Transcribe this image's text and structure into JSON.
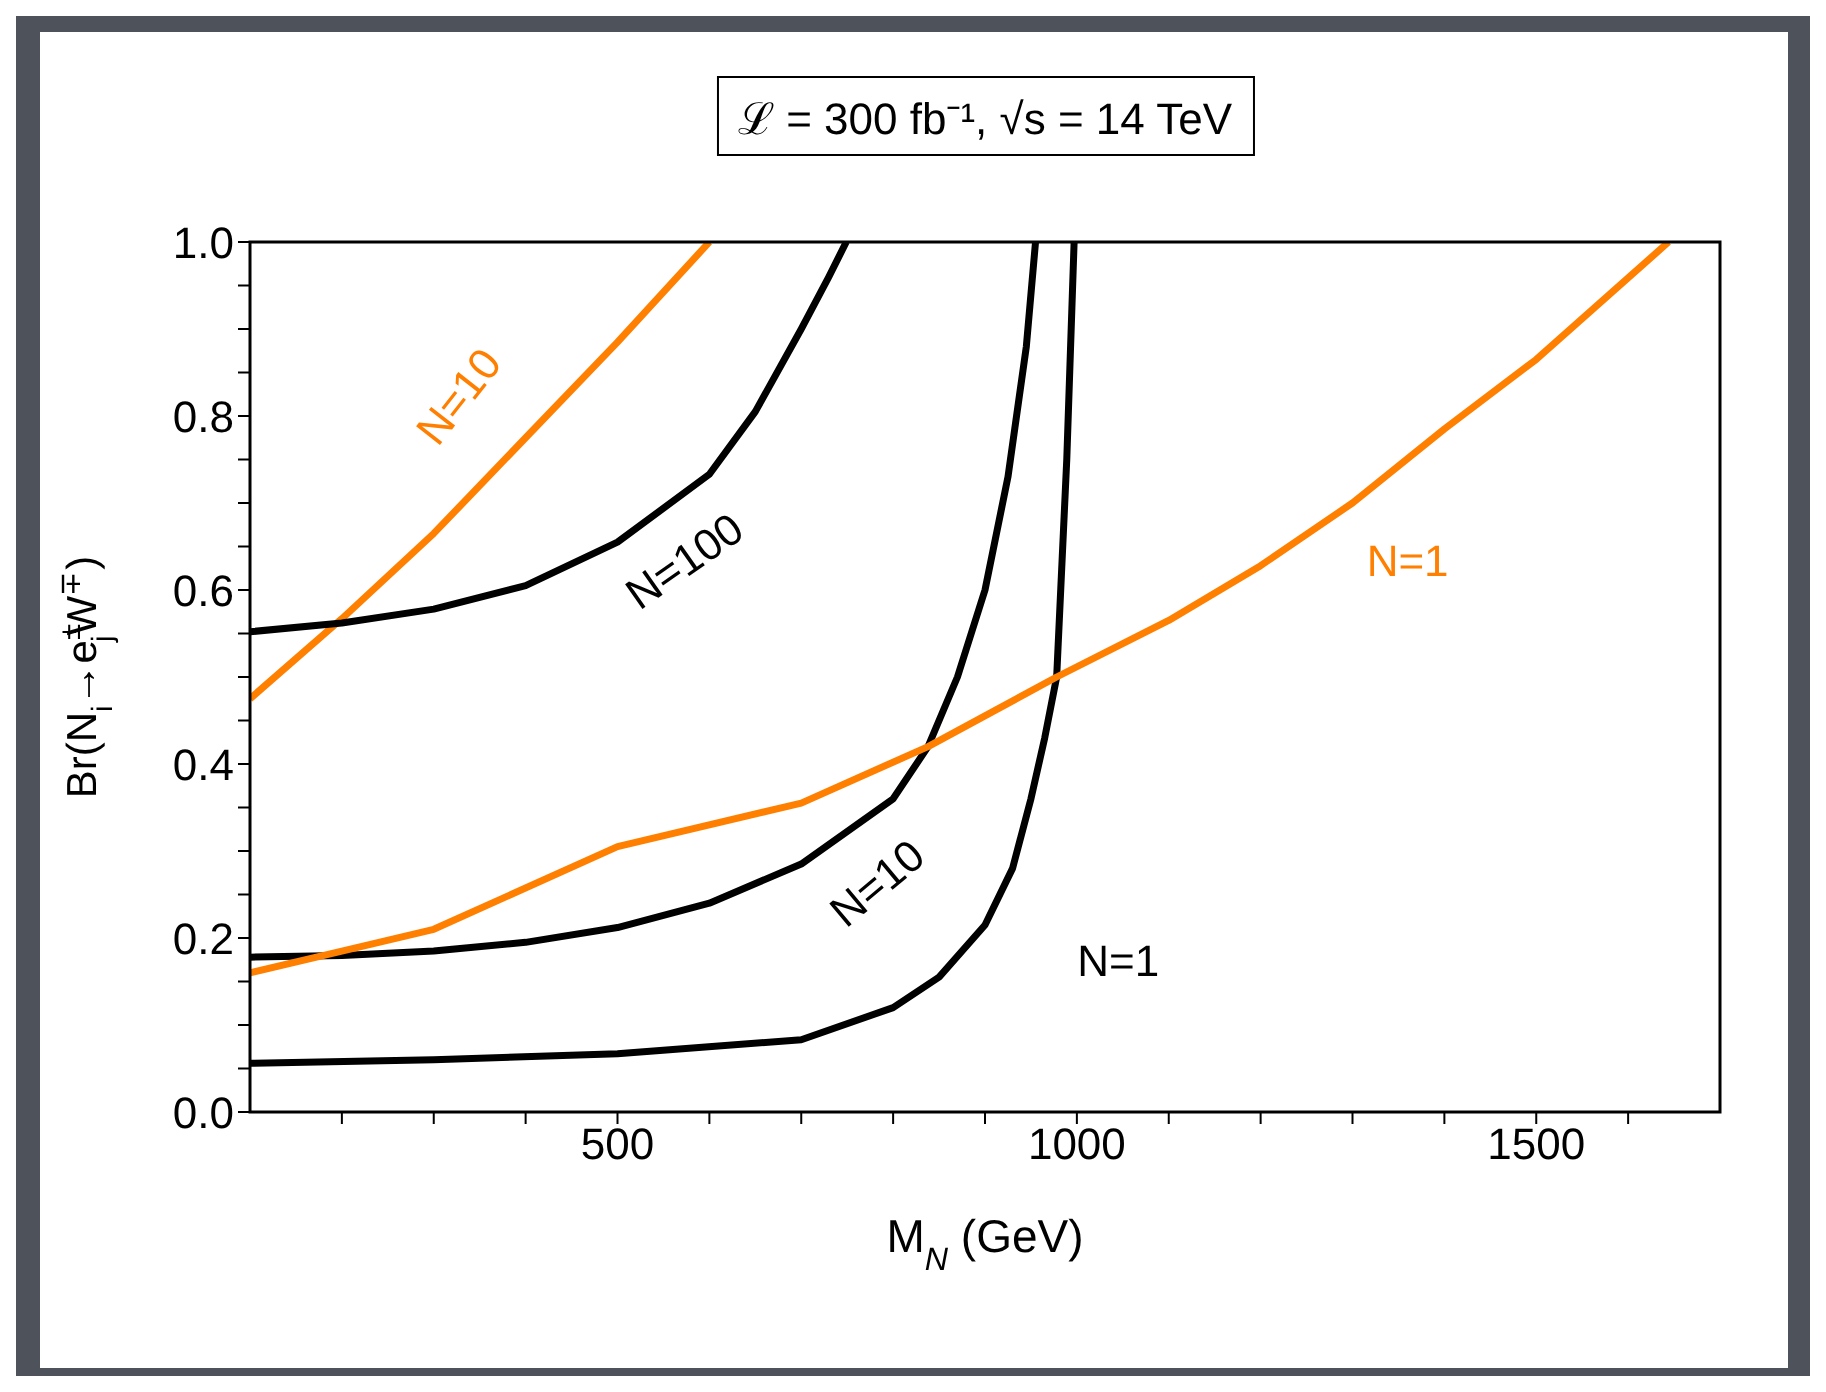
{
  "chart_data": {
    "type": "line",
    "title": "ℒ = 300 fb⁻¹, √s = 14 TeV",
    "xlabel": "M$_{N}$ (GeV)",
    "ylabel": "Br(N$_{i}$→e$^{±}$$_{j}$W$^{∓}$)",
    "xlim": [
      100,
      1700
    ],
    "ylim": [
      0,
      1
    ],
    "xticks": [
      {
        "value": 200,
        "label": null
      },
      {
        "value": 300,
        "label": null
      },
      {
        "value": 400,
        "label": null
      },
      500,
      {
        "value": 600,
        "label": null
      },
      {
        "value": 700,
        "label": null
      },
      {
        "value": 800,
        "label": null
      },
      {
        "value": 900,
        "label": null
      },
      1000,
      {
        "value": 1100,
        "label": null
      },
      {
        "value": 1200,
        "label": null
      },
      {
        "value": 1300,
        "label": null
      },
      {
        "value": 1400,
        "label": null
      },
      1500,
      {
        "value": 1600,
        "label": null
      }
    ],
    "yticks": [
      {
        "value": 0,
        "label": "0.0"
      },
      {
        "value": 0.05,
        "label": null
      },
      {
        "value": 0.1,
        "label": null
      },
      {
        "value": 0.15,
        "label": null
      },
      0.2,
      {
        "value": 0.25,
        "label": null
      },
      {
        "value": 0.3,
        "label": null
      },
      {
        "value": 0.35,
        "label": null
      },
      0.4,
      {
        "value": 0.45,
        "label": null
      },
      {
        "value": 0.5,
        "label": null
      },
      {
        "value": 0.55,
        "label": null
      },
      0.6,
      {
        "value": 0.65,
        "label": null
      },
      {
        "value": 0.7,
        "label": null
      },
      {
        "value": 0.75,
        "label": null
      },
      0.8,
      {
        "value": 0.85,
        "label": null
      },
      {
        "value": 0.9,
        "label": null
      },
      {
        "value": 0.95,
        "label": null
      },
      {
        "value": 1,
        "label": "1.0"
      }
    ],
    "series": [
      {
        "name": "N=10",
        "color": "#ff8000",
        "x": [
          100,
          200,
          300,
          400,
          500,
          600
        ],
        "values": [
          0.475,
          0.567,
          0.665,
          0.775,
          0.885,
          1.0
        ]
      },
      {
        "name": "N=100",
        "color": "#000000",
        "x": [
          100,
          200,
          300,
          400,
          500,
          600,
          650,
          700,
          730,
          749
        ],
        "values": [
          0.552,
          0.562,
          0.578,
          0.605,
          0.655,
          0.733,
          0.805,
          0.9,
          0.96,
          1.0
        ]
      },
      {
        "name": "N=10",
        "color": "#000000",
        "x": [
          100,
          200,
          300,
          400,
          500,
          600,
          700,
          800,
          838,
          870,
          900,
          925,
          945,
          955
        ],
        "values": [
          0.178,
          0.18,
          0.185,
          0.195,
          0.212,
          0.24,
          0.285,
          0.36,
          0.42,
          0.5,
          0.6,
          0.73,
          0.88,
          1.0
        ]
      },
      {
        "name": "N=1",
        "color": "#000000",
        "x": [
          100,
          300,
          500,
          700,
          800,
          850,
          900,
          930,
          950,
          965,
          978,
          989,
          997
        ],
        "values": [
          0.056,
          0.06,
          0.067,
          0.083,
          0.12,
          0.155,
          0.215,
          0.28,
          0.36,
          0.43,
          0.5,
          0.75,
          1.0
        ]
      },
      {
        "name": "N=1",
        "color": "#ff8000",
        "x": [
          100,
          200,
          300,
          500,
          700,
          838,
          978,
          1100,
          1200,
          1300,
          1400,
          1500,
          1644
        ],
        "values": [
          0.16,
          0.185,
          0.21,
          0.305,
          0.355,
          0.42,
          0.5,
          0.565,
          0.628,
          0.7,
          0.785,
          0.865,
          1.0
        ]
      }
    ]
  }
}
